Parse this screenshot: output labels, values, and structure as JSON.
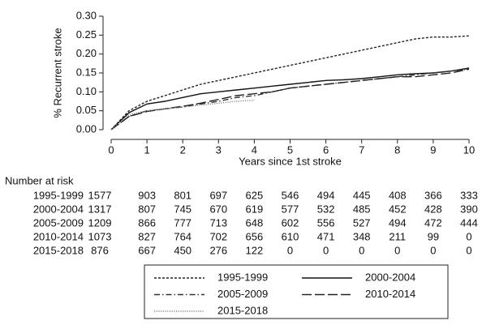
{
  "chart_data": {
    "type": "line",
    "x_label": "Years since 1st stroke",
    "y_label": "% Recurrent stroke",
    "x": [
      0,
      0.5,
      1,
      1.5,
      2,
      2.5,
      3,
      3.5,
      4,
      4.5,
      5,
      5.5,
      6,
      6.5,
      7,
      7.5,
      8,
      8.5,
      9,
      9.5,
      10
    ],
    "xlim": [
      0,
      10
    ],
    "xticks": [
      0,
      1,
      2,
      3,
      4,
      5,
      6,
      7,
      8,
      9,
      10
    ],
    "ylim": [
      0,
      0.3
    ],
    "yticks": [
      {
        "value": 0,
        "label": "0.00"
      },
      0.05,
      {
        "value": 0.1,
        "label": "0.10"
      },
      0.15,
      {
        "value": 0.2,
        "label": "0.20"
      },
      0.25,
      {
        "value": 0.3,
        "label": "0.30"
      }
    ],
    "grid": false,
    "series": [
      {
        "name": "1995-1999",
        "color": "#222222",
        "style": "dashed",
        "values": [
          0,
          0.05,
          0.075,
          0.09,
          0.105,
          0.12,
          0.13,
          0.14,
          0.15,
          0.16,
          0.17,
          0.18,
          0.19,
          0.2,
          0.21,
          0.22,
          0.23,
          0.24,
          0.245,
          0.245,
          0.248
        ]
      },
      {
        "name": "2000-2004",
        "color": "#111111",
        "style": "solid",
        "values": [
          0,
          0.045,
          0.068,
          0.075,
          0.085,
          0.095,
          0.1,
          0.105,
          0.11,
          0.115,
          0.12,
          0.125,
          0.13,
          0.132,
          0.135,
          0.14,
          0.145,
          0.148,
          0.15,
          0.155,
          0.163
        ]
      },
      {
        "name": "2005-2009",
        "color": "#333333",
        "style": "dashdot",
        "values": [
          0,
          0.035,
          0.05,
          0.055,
          0.06,
          0.068,
          0.075,
          0.085,
          0.09,
          0.1,
          0.11,
          0.115,
          0.12,
          0.125,
          0.13,
          0.135,
          0.14,
          0.145,
          0.15,
          0.155,
          0.16
        ]
      },
      {
        "name": "2010-2014",
        "color": "#222222",
        "style": "longdash",
        "values": [
          0,
          0.035,
          0.048,
          0.055,
          0.062,
          0.07,
          0.08,
          0.09,
          0.095,
          0.1,
          0.11,
          0.115,
          0.12,
          0.125,
          0.13,
          0.135,
          0.14,
          0.14,
          0.145,
          0.15,
          0.16
        ]
      },
      {
        "name": "2015-2018",
        "color": "#888888",
        "style": "dotted",
        "values": [
          0,
          0.04,
          0.05,
          0.055,
          0.06,
          0.065,
          0.07,
          0.075,
          0.078,
          null,
          null,
          null,
          null,
          null,
          null,
          null,
          null,
          null,
          null,
          null,
          null
        ]
      }
    ],
    "risk_table": {
      "title": "Number at risk",
      "rows": [
        {
          "label": "1995-1999",
          "values": [
            1577,
            903,
            801,
            697,
            625,
            546,
            494,
            445,
            408,
            366,
            333
          ]
        },
        {
          "label": "2000-2004",
          "values": [
            1317,
            807,
            745,
            670,
            619,
            577,
            532,
            485,
            452,
            428,
            390
          ]
        },
        {
          "label": "2005-2009",
          "values": [
            1209,
            866,
            777,
            713,
            648,
            602,
            556,
            527,
            494,
            472,
            444
          ]
        },
        {
          "label": "2010-2014",
          "values": [
            1073,
            827,
            764,
            702,
            656,
            610,
            471,
            348,
            211,
            99,
            0
          ]
        },
        {
          "label": "2015-2018",
          "values": [
            876,
            667,
            450,
            276,
            122,
            0,
            0,
            0,
            0,
            0,
            0
          ]
        }
      ]
    }
  }
}
